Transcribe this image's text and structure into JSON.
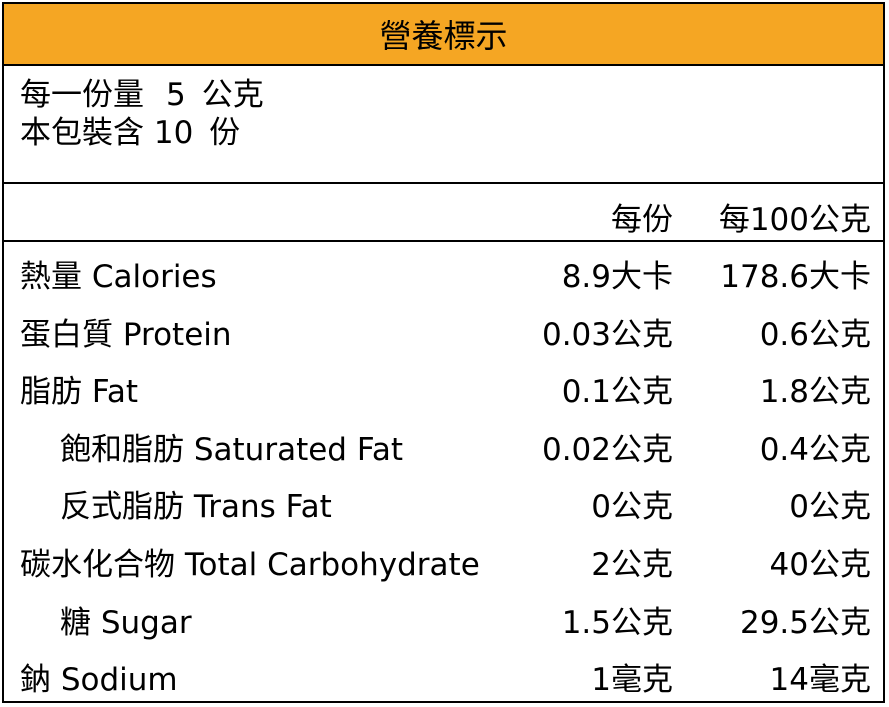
{
  "title": "營養標示",
  "serving": {
    "size_label": "每一份量",
    "size_value": "5",
    "size_unit": "公克",
    "count_label": "本包裝含",
    "count_value": "10",
    "count_unit": "份"
  },
  "columns": {
    "per_serving": "每份",
    "per_100g": "每100公克"
  },
  "rows": [
    {
      "name": "熱量 Calories",
      "per_serving": "8.9大卡",
      "per_100g": "178.6大卡",
      "indent": false
    },
    {
      "name": "蛋白質 Protein",
      "per_serving": "0.03公克",
      "per_100g": "0.6公克",
      "indent": false
    },
    {
      "name": "脂肪 Fat",
      "per_serving": "0.1公克",
      "per_100g": "1.8公克",
      "indent": false
    },
    {
      "name": "飽和脂肪 Saturated Fat",
      "per_serving": "0.02公克",
      "per_100g": "0.4公克",
      "indent": true
    },
    {
      "name": "反式脂肪 Trans Fat",
      "per_serving": "0公克",
      "per_100g": "0公克",
      "indent": true
    },
    {
      "name": "碳水化合物 Total Carbohydrate",
      "per_serving": "2公克",
      "per_100g": "40公克",
      "indent": false
    },
    {
      "name": "糖 Sugar",
      "per_serving": "1.5公克",
      "per_100g": "29.5公克",
      "indent": true
    },
    {
      "name": "鈉 Sodium",
      "per_serving": "1毫克",
      "per_100g": "14毫克",
      "indent": false
    }
  ],
  "colors": {
    "header_bg": "#F5A623",
    "border": "#000000"
  }
}
